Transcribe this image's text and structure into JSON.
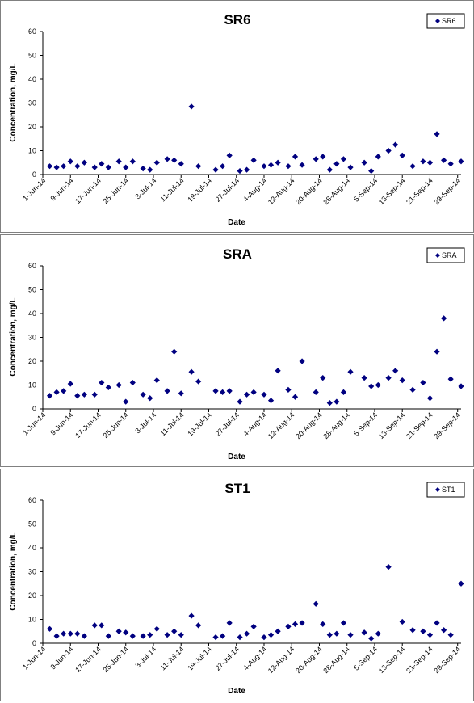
{
  "chart_data": [
    {
      "type": "scatter",
      "title": "SR6",
      "xlabel": "Date",
      "ylabel": "Concentration, mg/L",
      "ylim": [
        0,
        60
      ],
      "yticks": [
        "0",
        "10",
        "20",
        "30",
        "40",
        "50",
        "60"
      ],
      "xlim": [
        "2014-06-01",
        "2014-09-30"
      ],
      "xticks": [
        "1-Jun-14",
        "9-Jun-14",
        "17-Jun-14",
        "25-Jun-14",
        "3-Jul-14",
        "11-Jul-14",
        "19-Jul-14",
        "27-Jul-14",
        "4-Aug-14",
        "12-Aug-14",
        "20-Aug-14",
        "28-Aug-14",
        "5-Sep-14",
        "13-Sep-14",
        "21-Sep-14",
        "29-Sep-14"
      ],
      "legend": "top-right",
      "marker_color": "#000080",
      "series": [
        {
          "name": "SR6",
          "points": [
            [
              "2014-06-03",
              3.5
            ],
            [
              "2014-06-05",
              3.0
            ],
            [
              "2014-06-07",
              3.5
            ],
            [
              "2014-06-09",
              5.5
            ],
            [
              "2014-06-11",
              3.5
            ],
            [
              "2014-06-13",
              5.0
            ],
            [
              "2014-06-16",
              3.0
            ],
            [
              "2014-06-18",
              4.5
            ],
            [
              "2014-06-20",
              3.0
            ],
            [
              "2014-06-23",
              5.5
            ],
            [
              "2014-06-25",
              3.0
            ],
            [
              "2014-06-27",
              5.5
            ],
            [
              "2014-06-30",
              2.5
            ],
            [
              "2014-07-02",
              2.0
            ],
            [
              "2014-07-04",
              5.0
            ],
            [
              "2014-07-07",
              6.5
            ],
            [
              "2014-07-09",
              6.0
            ],
            [
              "2014-07-11",
              4.5
            ],
            [
              "2014-07-14",
              28.5
            ],
            [
              "2014-07-16",
              3.5
            ],
            [
              "2014-07-21",
              2.0
            ],
            [
              "2014-07-23",
              3.5
            ],
            [
              "2014-07-25",
              8.0
            ],
            [
              "2014-07-28",
              1.5
            ],
            [
              "2014-07-30",
              2.0
            ],
            [
              "2014-08-01",
              6.0
            ],
            [
              "2014-08-04",
              3.5
            ],
            [
              "2014-08-06",
              4.0
            ],
            [
              "2014-08-08",
              5.0
            ],
            [
              "2014-08-11",
              3.5
            ],
            [
              "2014-08-13",
              7.5
            ],
            [
              "2014-08-15",
              4.0
            ],
            [
              "2014-08-19",
              6.5
            ],
            [
              "2014-08-21",
              7.5
            ],
            [
              "2014-08-23",
              2.0
            ],
            [
              "2014-08-25",
              4.5
            ],
            [
              "2014-08-27",
              6.5
            ],
            [
              "2014-08-29",
              3.0
            ],
            [
              "2014-09-02",
              5.0
            ],
            [
              "2014-09-04",
              1.5
            ],
            [
              "2014-09-06",
              7.5
            ],
            [
              "2014-09-09",
              10.0
            ],
            [
              "2014-09-11",
              12.5
            ],
            [
              "2014-09-13",
              8.0
            ],
            [
              "2014-09-16",
              3.5
            ],
            [
              "2014-09-19",
              5.5
            ],
            [
              "2014-09-21",
              5.0
            ],
            [
              "2014-09-23",
              17.0
            ],
            [
              "2014-09-25",
              6.0
            ],
            [
              "2014-09-27",
              4.5
            ],
            [
              "2014-09-30",
              5.5
            ]
          ]
        }
      ]
    },
    {
      "type": "scatter",
      "title": "SRA",
      "xlabel": "Date",
      "ylabel": "Concentration, mg/L",
      "ylim": [
        0,
        60
      ],
      "yticks": [
        "0",
        "10",
        "20",
        "30",
        "40",
        "50",
        "60"
      ],
      "xlim": [
        "2014-06-01",
        "2014-09-30"
      ],
      "xticks": [
        "1-Jun-14",
        "9-Jun-14",
        "17-Jun-14",
        "25-Jun-14",
        "3-Jul-14",
        "11-Jul-14",
        "19-Jul-14",
        "27-Jul-14",
        "4-Aug-14",
        "12-Aug-14",
        "20-Aug-14",
        "28-Aug-14",
        "5-Sep-14",
        "13-Sep-14",
        "21-Sep-14",
        "29-Sep-14"
      ],
      "legend": "top-right",
      "marker_color": "#000080",
      "series": [
        {
          "name": "SRA",
          "points": [
            [
              "2014-06-03",
              5.5
            ],
            [
              "2014-06-05",
              7.0
            ],
            [
              "2014-06-07",
              7.5
            ],
            [
              "2014-06-09",
              10.5
            ],
            [
              "2014-06-11",
              5.5
            ],
            [
              "2014-06-13",
              6.0
            ],
            [
              "2014-06-16",
              6.0
            ],
            [
              "2014-06-18",
              11.0
            ],
            [
              "2014-06-20",
              9.0
            ],
            [
              "2014-06-23",
              10.0
            ],
            [
              "2014-06-25",
              3.0
            ],
            [
              "2014-06-27",
              11.0
            ],
            [
              "2014-06-30",
              6.0
            ],
            [
              "2014-07-02",
              4.5
            ],
            [
              "2014-07-04",
              12.0
            ],
            [
              "2014-07-07",
              7.5
            ],
            [
              "2014-07-09",
              24.0
            ],
            [
              "2014-07-11",
              6.5
            ],
            [
              "2014-07-14",
              15.5
            ],
            [
              "2014-07-16",
              11.5
            ],
            [
              "2014-07-21",
              7.5
            ],
            [
              "2014-07-23",
              7.0
            ],
            [
              "2014-07-25",
              7.5
            ],
            [
              "2014-07-28",
              3.0
            ],
            [
              "2014-07-30",
              6.0
            ],
            [
              "2014-08-01",
              7.0
            ],
            [
              "2014-08-04",
              6.0
            ],
            [
              "2014-08-06",
              3.5
            ],
            [
              "2014-08-08",
              16.0
            ],
            [
              "2014-08-11",
              8.0
            ],
            [
              "2014-08-13",
              5.0
            ],
            [
              "2014-08-15",
              20.0
            ],
            [
              "2014-08-19",
              7.0
            ],
            [
              "2014-08-21",
              13.0
            ],
            [
              "2014-08-23",
              2.5
            ],
            [
              "2014-08-25",
              3.0
            ],
            [
              "2014-08-27",
              7.0
            ],
            [
              "2014-08-29",
              15.5
            ],
            [
              "2014-09-02",
              13.0
            ],
            [
              "2014-09-04",
              9.5
            ],
            [
              "2014-09-06",
              10.0
            ],
            [
              "2014-09-09",
              13.0
            ],
            [
              "2014-09-11",
              16.0
            ],
            [
              "2014-09-13",
              12.0
            ],
            [
              "2014-09-16",
              8.0
            ],
            [
              "2014-09-19",
              11.0
            ],
            [
              "2014-09-21",
              4.5
            ],
            [
              "2014-09-23",
              24.0
            ],
            [
              "2014-09-25",
              38.0
            ],
            [
              "2014-09-27",
              12.5
            ],
            [
              "2014-09-30",
              9.5
            ]
          ]
        }
      ]
    },
    {
      "type": "scatter",
      "title": "ST1",
      "xlabel": "Date",
      "ylabel": "Concentration, mg/L",
      "ylim": [
        0,
        60
      ],
      "yticks": [
        "0",
        "10",
        "20",
        "30",
        "40",
        "50",
        "60"
      ],
      "xlim": [
        "2014-06-01",
        "2014-09-30"
      ],
      "xticks": [
        "1-Jun-14",
        "9-Jun-14",
        "17-Jun-14",
        "25-Jun-14",
        "3-Jul-14",
        "11-Jul-14",
        "19-Jul-14",
        "27-Jul-14",
        "4-Aug-14",
        "12-Aug-14",
        "20-Aug-14",
        "28-Aug-14",
        "5-Sep-14",
        "13-Sep-14",
        "21-Sep-14",
        "29-Sep-14"
      ],
      "legend": "top-right",
      "marker_color": "#000080",
      "series": [
        {
          "name": "ST1",
          "points": [
            [
              "2014-06-03",
              6.0
            ],
            [
              "2014-06-05",
              3.0
            ],
            [
              "2014-06-07",
              4.0
            ],
            [
              "2014-06-09",
              4.0
            ],
            [
              "2014-06-11",
              4.0
            ],
            [
              "2014-06-13",
              3.0
            ],
            [
              "2014-06-16",
              7.5
            ],
            [
              "2014-06-18",
              7.5
            ],
            [
              "2014-06-20",
              3.0
            ],
            [
              "2014-06-23",
              5.0
            ],
            [
              "2014-06-25",
              4.5
            ],
            [
              "2014-06-27",
              3.0
            ],
            [
              "2014-06-30",
              3.0
            ],
            [
              "2014-07-02",
              3.5
            ],
            [
              "2014-07-04",
              6.0
            ],
            [
              "2014-07-07",
              3.5
            ],
            [
              "2014-07-09",
              5.0
            ],
            [
              "2014-07-11",
              3.5
            ],
            [
              "2014-07-14",
              11.5
            ],
            [
              "2014-07-16",
              7.5
            ],
            [
              "2014-07-21",
              2.5
            ],
            [
              "2014-07-23",
              3.0
            ],
            [
              "2014-07-25",
              8.5
            ],
            [
              "2014-07-28",
              2.5
            ],
            [
              "2014-07-30",
              4.0
            ],
            [
              "2014-08-01",
              7.0
            ],
            [
              "2014-08-04",
              2.5
            ],
            [
              "2014-08-06",
              3.5
            ],
            [
              "2014-08-08",
              5.0
            ],
            [
              "2014-08-11",
              7.0
            ],
            [
              "2014-08-13",
              8.0
            ],
            [
              "2014-08-15",
              8.5
            ],
            [
              "2014-08-19",
              16.5
            ],
            [
              "2014-08-21",
              8.0
            ],
            [
              "2014-08-23",
              3.5
            ],
            [
              "2014-08-25",
              4.0
            ],
            [
              "2014-08-27",
              8.5
            ],
            [
              "2014-08-29",
              3.5
            ],
            [
              "2014-09-02",
              4.5
            ],
            [
              "2014-09-04",
              2.0
            ],
            [
              "2014-09-06",
              4.0
            ],
            [
              "2014-09-09",
              32.0
            ],
            [
              "2014-09-13",
              9.0
            ],
            [
              "2014-09-16",
              5.5
            ],
            [
              "2014-09-19",
              5.0
            ],
            [
              "2014-09-21",
              3.5
            ],
            [
              "2014-09-23",
              8.5
            ],
            [
              "2014-09-25",
              5.5
            ],
            [
              "2014-09-27",
              3.5
            ],
            [
              "2014-09-30",
              25.0
            ]
          ]
        }
      ]
    }
  ]
}
